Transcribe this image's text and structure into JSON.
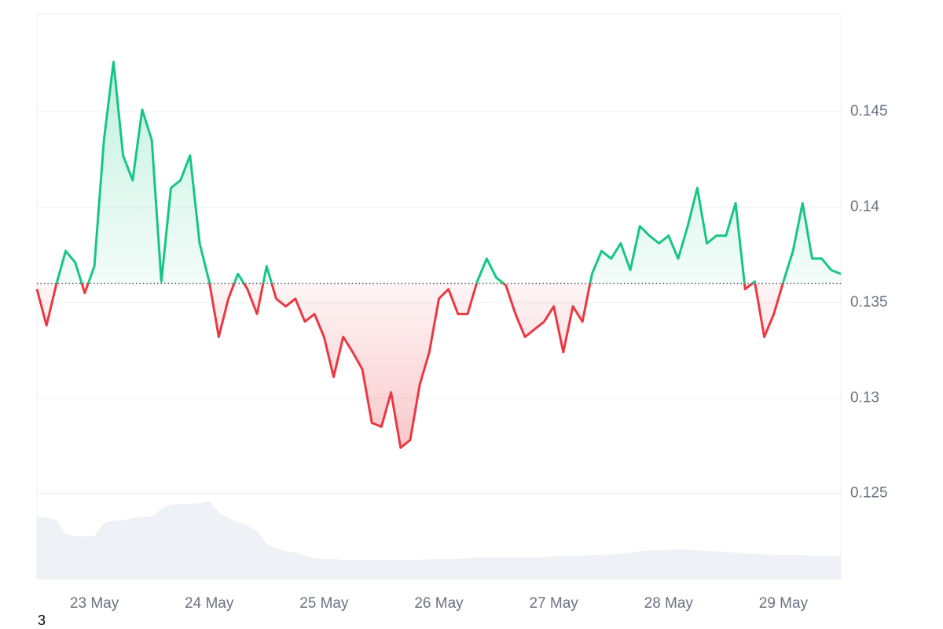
{
  "chart_data": {
    "type": "line",
    "categories": [
      null,
      null,
      null,
      null,
      null,
      null,
      "23 May",
      null,
      null,
      null,
      null,
      null,
      null,
      null,
      null,
      null,
      null,
      null,
      "24 May",
      null,
      null,
      null,
      null,
      null,
      null,
      null,
      null,
      null,
      null,
      null,
      "25 May",
      null,
      null,
      null,
      null,
      null,
      null,
      null,
      null,
      null,
      null,
      null,
      "26 May",
      null,
      null,
      null,
      null,
      null,
      null,
      null,
      null,
      null,
      null,
      null,
      "27 May",
      null,
      null,
      null,
      null,
      null,
      null,
      null,
      null,
      null,
      null,
      null,
      "28 May",
      null,
      null,
      null,
      null,
      null,
      null,
      null,
      null,
      null,
      null,
      null,
      "29 May",
      null,
      null,
      null,
      null,
      null,
      null
    ],
    "values": [
      0.1357,
      0.1338,
      0.1359,
      0.1377,
      0.1371,
      0.1355,
      0.1369,
      0.1435,
      0.1476,
      0.1427,
      0.1414,
      0.1451,
      0.1435,
      0.1361,
      0.141,
      0.1414,
      0.1427,
      0.1381,
      0.1361,
      0.1332,
      0.1352,
      0.1365,
      0.1357,
      0.1344,
      0.1369,
      0.1352,
      0.1348,
      0.1352,
      0.134,
      0.1344,
      0.1332,
      0.1311,
      0.1332,
      0.1324,
      0.1315,
      0.1287,
      0.1285,
      0.1303,
      0.1274,
      0.1278,
      0.1307,
      0.1324,
      0.1352,
      0.1357,
      0.1344,
      0.1344,
      0.1361,
      0.1373,
      0.1363,
      0.1359,
      0.1344,
      0.1332,
      0.1336,
      0.134,
      0.1348,
      0.1324,
      0.1348,
      0.134,
      0.1365,
      0.1377,
      0.1373,
      0.1381,
      0.1367,
      0.139,
      0.1385,
      0.1381,
      0.1385,
      0.1373,
      0.139,
      0.141,
      0.1381,
      0.1385,
      0.1385,
      0.1402,
      0.1357,
      0.1361,
      0.1332,
      0.1344,
      0.1361,
      0.1377,
      0.1402,
      0.1373,
      0.1373,
      0.1367,
      0.1365
    ],
    "volumes": [
      80,
      78,
      76,
      58,
      55,
      55,
      55,
      72,
      75,
      75,
      78,
      80,
      80,
      90,
      95,
      96,
      96,
      97,
      100,
      85,
      78,
      73,
      68,
      62,
      45,
      40,
      36,
      34,
      30,
      27,
      26,
      26,
      25,
      25,
      25,
      25,
      25,
      25,
      25,
      25,
      25,
      26,
      26,
      26,
      26,
      27,
      28,
      28,
      28,
      28,
      28,
      28,
      28,
      28,
      30,
      30,
      30,
      30,
      31,
      31,
      32,
      33,
      34,
      36,
      37,
      37,
      38,
      38,
      38,
      37,
      36,
      36,
      35,
      34,
      33,
      33,
      32,
      31,
      31,
      31,
      31,
      30,
      30,
      30,
      30
    ],
    "baseline": 0.136,
    "up_color": "#16c784",
    "down_color": "#ea3943",
    "volume_color": "#eef1f5",
    "ylim": [
      0.1205,
      0.1501
    ],
    "yticks": [
      0.125,
      0.13,
      0.135,
      0.14,
      0.145
    ],
    "grid": true,
    "footnote": "3"
  }
}
